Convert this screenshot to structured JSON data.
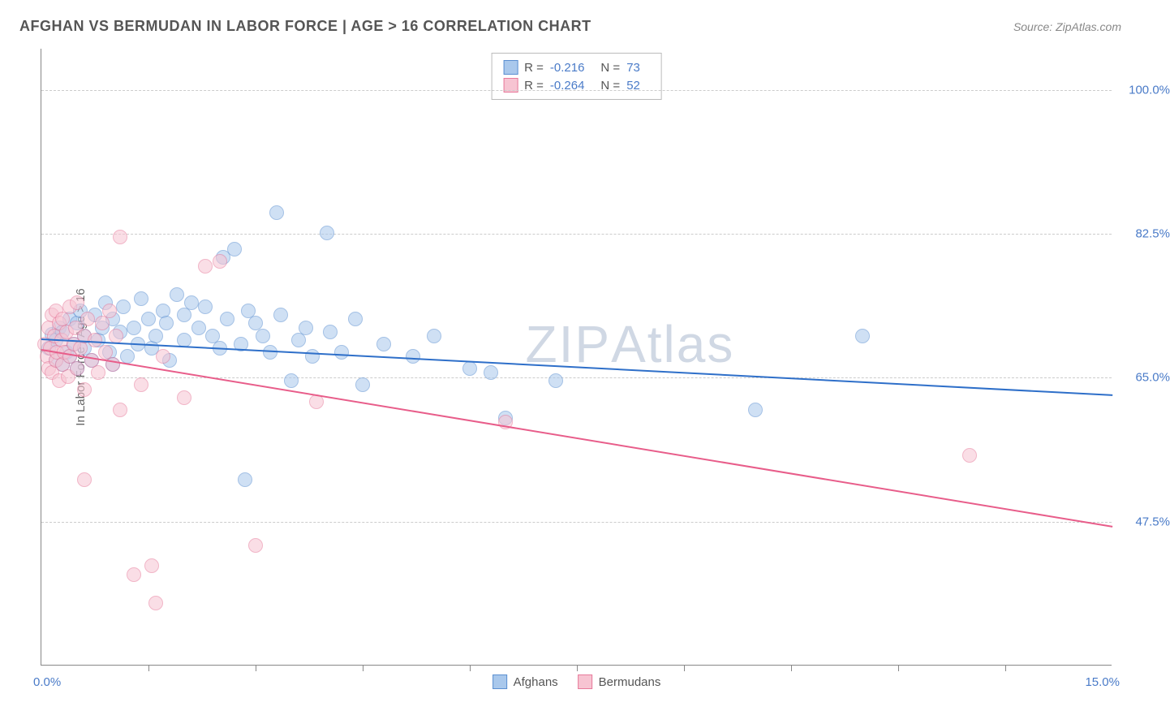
{
  "header": {
    "title": "AFGHAN VS BERMUDAN IN LABOR FORCE | AGE > 16 CORRELATION CHART",
    "source": "Source: ZipAtlas.com"
  },
  "watermark": {
    "bold": "ZIP",
    "thin": "Atlas"
  },
  "chart": {
    "type": "scatter",
    "ylabel": "In Labor Force | Age > 16",
    "xlim": [
      0,
      15
    ],
    "ylim": [
      30,
      105
    ],
    "xaxis_label_min": "0.0%",
    "xaxis_label_max": "15.0%",
    "xtick_positions": [
      1.5,
      3.0,
      4.5,
      6.0,
      7.5,
      9.0,
      10.5,
      12.0,
      13.5
    ],
    "yticks": [
      {
        "value": 47.5,
        "label": "47.5%"
      },
      {
        "value": 65.0,
        "label": "65.0%"
      },
      {
        "value": 82.5,
        "label": "82.5%"
      },
      {
        "value": 100.0,
        "label": "100.0%"
      }
    ],
    "background_color": "#ffffff",
    "grid_color": "#cccccc",
    "axis_color": "#888888",
    "label_color": "#4a7bc8",
    "marker_radius": 9,
    "marker_opacity": 0.55,
    "trendline_width": 2,
    "series": [
      {
        "name": "Afghans",
        "fill": "#a9c8ec",
        "stroke": "#5b8fd1",
        "line_color": "#2e6fc9",
        "R": "-0.216",
        "N": "73",
        "trend": {
          "x1": 0,
          "y1": 69.8,
          "x2": 15,
          "y2": 63.0
        },
        "points": [
          [
            0.1,
            68.5
          ],
          [
            0.15,
            70.2
          ],
          [
            0.2,
            67.0
          ],
          [
            0.2,
            69.5
          ],
          [
            0.25,
            71.0
          ],
          [
            0.3,
            66.5
          ],
          [
            0.3,
            70.5
          ],
          [
            0.35,
            68.0
          ],
          [
            0.4,
            72.0
          ],
          [
            0.4,
            67.5
          ],
          [
            0.45,
            69.0
          ],
          [
            0.5,
            71.5
          ],
          [
            0.5,
            66.0
          ],
          [
            0.55,
            73.0
          ],
          [
            0.6,
            68.5
          ],
          [
            0.6,
            70.0
          ],
          [
            0.7,
            67.0
          ],
          [
            0.75,
            72.5
          ],
          [
            0.8,
            69.5
          ],
          [
            0.85,
            71.0
          ],
          [
            0.9,
            74.0
          ],
          [
            0.95,
            68.0
          ],
          [
            1.0,
            66.5
          ],
          [
            1.0,
            72.0
          ],
          [
            1.1,
            70.5
          ],
          [
            1.15,
            73.5
          ],
          [
            1.2,
            67.5
          ],
          [
            1.3,
            71.0
          ],
          [
            1.35,
            69.0
          ],
          [
            1.4,
            74.5
          ],
          [
            1.5,
            72.0
          ],
          [
            1.55,
            68.5
          ],
          [
            1.6,
            70.0
          ],
          [
            1.7,
            73.0
          ],
          [
            1.75,
            71.5
          ],
          [
            1.8,
            67.0
          ],
          [
            1.9,
            75.0
          ],
          [
            2.0,
            72.5
          ],
          [
            2.0,
            69.5
          ],
          [
            2.1,
            74.0
          ],
          [
            2.2,
            71.0
          ],
          [
            2.3,
            73.5
          ],
          [
            2.4,
            70.0
          ],
          [
            2.5,
            68.5
          ],
          [
            2.55,
            79.5
          ],
          [
            2.6,
            72.0
          ],
          [
            2.7,
            80.5
          ],
          [
            2.8,
            69.0
          ],
          [
            2.85,
            52.5
          ],
          [
            2.9,
            73.0
          ],
          [
            3.0,
            71.5
          ],
          [
            3.1,
            70.0
          ],
          [
            3.2,
            68.0
          ],
          [
            3.3,
            85.0
          ],
          [
            3.35,
            72.5
          ],
          [
            3.5,
            64.5
          ],
          [
            3.6,
            69.5
          ],
          [
            3.7,
            71.0
          ],
          [
            3.8,
            67.5
          ],
          [
            4.0,
            82.5
          ],
          [
            4.05,
            70.5
          ],
          [
            4.2,
            68.0
          ],
          [
            4.4,
            72.0
          ],
          [
            4.5,
            64.0
          ],
          [
            4.8,
            69.0
          ],
          [
            5.2,
            67.5
          ],
          [
            5.5,
            70.0
          ],
          [
            6.0,
            66.0
          ],
          [
            6.3,
            65.5
          ],
          [
            6.5,
            60.0
          ],
          [
            7.2,
            64.5
          ],
          [
            10.0,
            61.0
          ],
          [
            11.5,
            70.0
          ]
        ]
      },
      {
        "name": "Bermudans",
        "fill": "#f7c4d2",
        "stroke": "#e77a9b",
        "line_color": "#e85d8a",
        "R": "-0.264",
        "N": "52",
        "trend": {
          "x1": 0,
          "y1": 68.5,
          "x2": 15,
          "y2": 47.0
        },
        "points": [
          [
            0.05,
            69.0
          ],
          [
            0.08,
            67.5
          ],
          [
            0.1,
            71.0
          ],
          [
            0.1,
            66.0
          ],
          [
            0.12,
            68.5
          ],
          [
            0.15,
            72.5
          ],
          [
            0.15,
            65.5
          ],
          [
            0.18,
            70.0
          ],
          [
            0.2,
            67.0
          ],
          [
            0.2,
            73.0
          ],
          [
            0.22,
            68.0
          ],
          [
            0.25,
            71.5
          ],
          [
            0.25,
            64.5
          ],
          [
            0.28,
            69.5
          ],
          [
            0.3,
            66.5
          ],
          [
            0.3,
            72.0
          ],
          [
            0.32,
            68.0
          ],
          [
            0.35,
            70.5
          ],
          [
            0.38,
            65.0
          ],
          [
            0.4,
            73.5
          ],
          [
            0.4,
            67.5
          ],
          [
            0.45,
            69.0
          ],
          [
            0.48,
            71.0
          ],
          [
            0.5,
            66.0
          ],
          [
            0.5,
            74.0
          ],
          [
            0.55,
            68.5
          ],
          [
            0.6,
            70.0
          ],
          [
            0.6,
            63.5
          ],
          [
            0.65,
            72.0
          ],
          [
            0.7,
            67.0
          ],
          [
            0.75,
            69.5
          ],
          [
            0.8,
            65.5
          ],
          [
            0.85,
            71.5
          ],
          [
            0.9,
            68.0
          ],
          [
            0.95,
            73.0
          ],
          [
            1.0,
            66.5
          ],
          [
            1.05,
            70.0
          ],
          [
            1.1,
            61.0
          ],
          [
            1.1,
            82.0
          ],
          [
            1.3,
            41.0
          ],
          [
            1.4,
            64.0
          ],
          [
            1.55,
            42.0
          ],
          [
            1.6,
            37.5
          ],
          [
            1.7,
            67.5
          ],
          [
            2.0,
            62.5
          ],
          [
            2.3,
            78.5
          ],
          [
            2.5,
            79.0
          ],
          [
            3.0,
            44.5
          ],
          [
            3.85,
            62.0
          ],
          [
            0.6,
            52.5
          ],
          [
            6.5,
            59.5
          ],
          [
            13.0,
            55.5
          ]
        ]
      }
    ]
  }
}
